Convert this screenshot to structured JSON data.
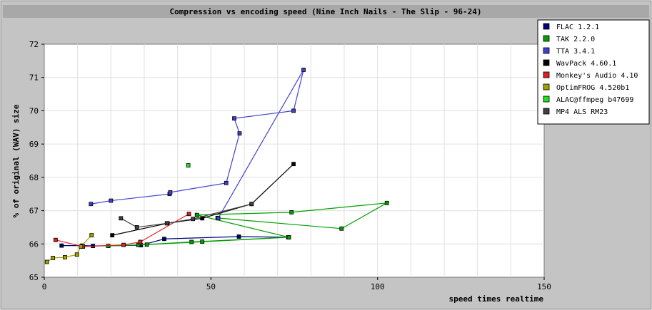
{
  "chart_data": {
    "type": "line",
    "title": "Compression vs encoding speed (Nine Inch Nails - The Slip - 96-24)",
    "xlabel": "speed times realtime",
    "ylabel": "% of original (WAV) size",
    "xlim": [
      0,
      150
    ],
    "ylim": [
      65,
      72
    ],
    "x_ticks": [
      0,
      50,
      100,
      150
    ],
    "y_ticks": [
      65,
      66,
      67,
      68,
      69,
      70,
      71,
      72
    ],
    "grid": true,
    "legend_position": "top-right",
    "series": [
      {
        "name": "FLAC 1.2.1",
        "color": "#00007a",
        "points": [
          [
            5.2,
            65.95
          ],
          [
            11.4,
            65.95
          ],
          [
            14.6,
            65.94
          ],
          [
            29.0,
            65.96
          ],
          [
            36.0,
            66.15
          ],
          [
            58.4,
            66.22
          ],
          [
            73.2,
            66.2
          ]
        ]
      },
      {
        "name": "TAK 2.2.0",
        "color": "#00a000",
        "points": [
          [
            19.2,
            65.94
          ],
          [
            28.2,
            65.97
          ],
          [
            44.2,
            66.06
          ],
          [
            73.4,
            66.2
          ],
          [
            30.8,
            65.98
          ],
          [
            47.4,
            66.07
          ],
          [
            73.4,
            66.2
          ],
          [
            45.8,
            66.87
          ],
          [
            74.2,
            66.95
          ],
          [
            102.8,
            67.23
          ],
          [
            89.2,
            66.46
          ],
          [
            52.0,
            66.78
          ]
        ]
      },
      {
        "name": "TTA 3.4.1",
        "color": "#4040d0",
        "points": [
          [
            14.0,
            67.2
          ],
          [
            20.0,
            67.3
          ],
          [
            37.6,
            67.5
          ],
          [
            37.8,
            67.55
          ],
          [
            54.6,
            67.83
          ],
          [
            58.6,
            69.32
          ],
          [
            57.0,
            69.77
          ],
          [
            74.8,
            70.0
          ],
          [
            77.8,
            71.23
          ],
          [
            52.2,
            66.77
          ]
        ]
      },
      {
        "name": "WavPack 4.60.1",
        "color": "#000000",
        "points": [
          [
            20.4,
            66.26
          ],
          [
            37.0,
            66.62
          ],
          [
            47.4,
            66.77
          ],
          [
            62.2,
            67.2
          ],
          [
            74.8,
            68.4
          ]
        ]
      },
      {
        "name": "Monkey's Audio 4.10",
        "color": "#e02020",
        "points": [
          [
            3.4,
            66.12
          ],
          [
            11.6,
            65.92
          ],
          [
            23.8,
            65.97
          ],
          [
            28.8,
            66.06
          ],
          [
            43.4,
            66.9
          ]
        ]
      },
      {
        "name": "OptimFROG 4.520b1",
        "color": "#a0a000",
        "points": [
          [
            0.8,
            65.46
          ],
          [
            2.6,
            65.58
          ],
          [
            6.2,
            65.6
          ],
          [
            9.8,
            65.68
          ],
          [
            11.0,
            65.92
          ],
          [
            14.2,
            66.26
          ]
        ]
      },
      {
        "name": "ALAC@ffmpeg b47699",
        "color": "#20e020",
        "points": [
          [
            43.2,
            68.36
          ]
        ]
      },
      {
        "name": "MP4 ALS RM23",
        "color": "#404040",
        "points": [
          [
            23.0,
            66.77
          ],
          [
            27.8,
            66.5
          ],
          [
            36.8,
            66.62
          ],
          [
            44.6,
            66.75
          ],
          [
            62.2,
            67.2
          ]
        ]
      }
    ]
  }
}
